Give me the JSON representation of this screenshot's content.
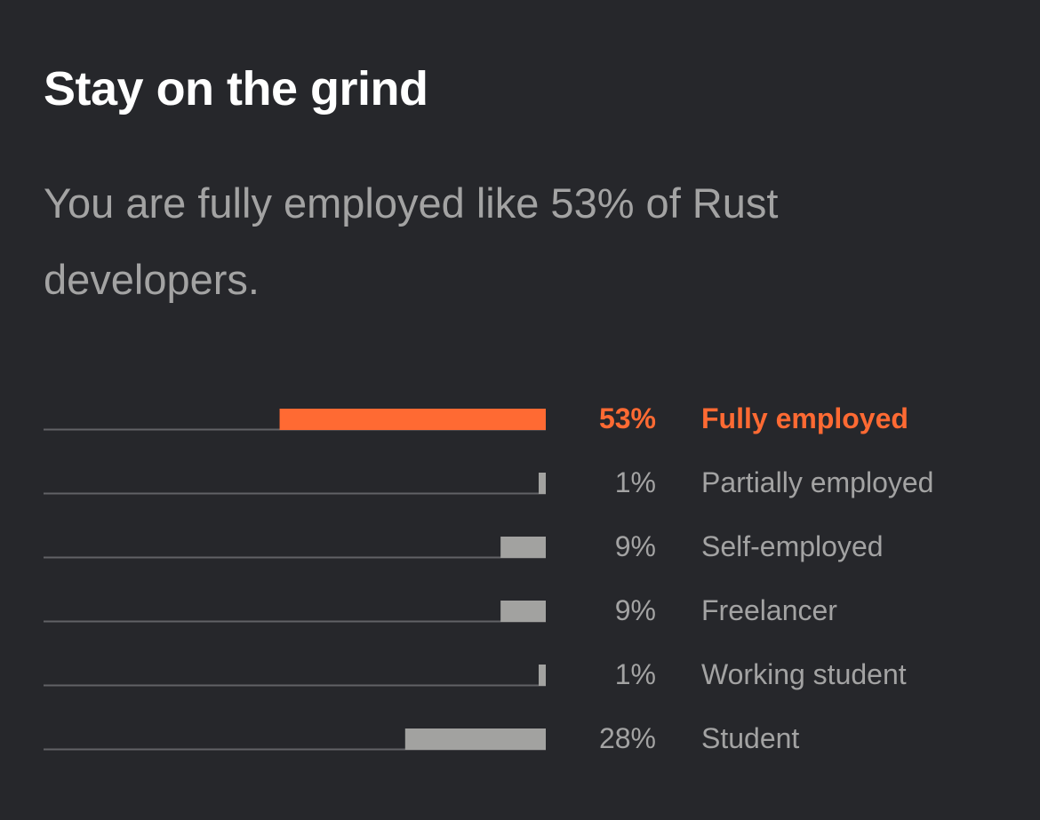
{
  "header": {
    "title": "Stay on the grind",
    "subtitle": "You are fully employed like 53% of Rust developers."
  },
  "colors": {
    "background": "#26272b",
    "highlight": "#ff6a33",
    "bar": "#a2a2a0",
    "baseline": "#616266",
    "text_muted": "#a3a3a3",
    "title": "#ffffff"
  },
  "chart_data": {
    "type": "bar",
    "orientation": "horizontal",
    "direction": "right-to-left",
    "title": "",
    "xlim": [
      0,
      100
    ],
    "highlight_index": 0,
    "categories": [
      "Fully employed",
      "Partially employed",
      "Self-employed",
      "Freelancer",
      "Working student",
      "Student"
    ],
    "values": [
      53,
      1,
      9,
      9,
      1,
      28
    ],
    "value_labels": [
      "53%",
      "1%",
      "9%",
      "9%",
      "1%",
      "28%"
    ]
  }
}
